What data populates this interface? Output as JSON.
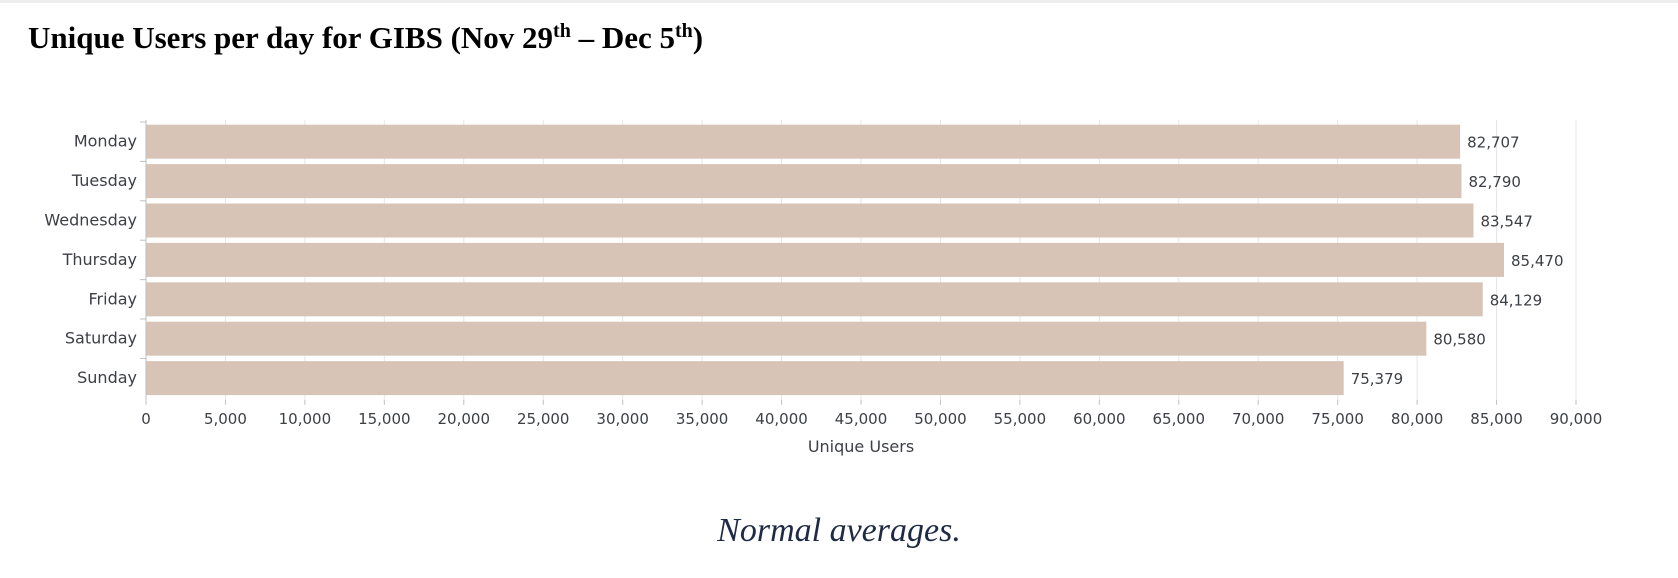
{
  "title": {
    "prefix": "Unique Users per day for GIBS (Nov 29",
    "sup1": "th",
    "middle": " – Dec 5",
    "sup2": "th",
    "suffix": ")"
  },
  "caption": "Normal averages.",
  "colors": {
    "bar": "#d7c4b6",
    "grid": "#e6e6e6",
    "axis": "#bfbfbf",
    "text": "#3c3f44"
  },
  "chart_data": {
    "type": "bar",
    "orientation": "horizontal",
    "categories": [
      "Monday",
      "Tuesday",
      "Wednesday",
      "Thursday",
      "Friday",
      "Saturday",
      "Sunday"
    ],
    "values": [
      82707,
      82790,
      83547,
      85470,
      84129,
      80580,
      75379
    ],
    "value_labels": [
      "82,707",
      "82,790",
      "83,547",
      "85,470",
      "84,129",
      "80,580",
      "75,379"
    ],
    "xlabel": "Unique Users",
    "ylabel": "",
    "xlim": [
      0,
      90000
    ],
    "xticks": [
      0,
      5000,
      10000,
      15000,
      20000,
      25000,
      30000,
      35000,
      40000,
      45000,
      50000,
      55000,
      60000,
      65000,
      70000,
      75000,
      80000,
      85000,
      90000
    ],
    "xtick_labels": [
      "0",
      "5,000",
      "10,000",
      "15,000",
      "20,000",
      "25,000",
      "30,000",
      "35,000",
      "40,000",
      "45,000",
      "50,000",
      "55,000",
      "60,000",
      "65,000",
      "70,000",
      "75,000",
      "80,000",
      "85,000",
      "90,000"
    ],
    "grid": true,
    "legend": "none"
  }
}
